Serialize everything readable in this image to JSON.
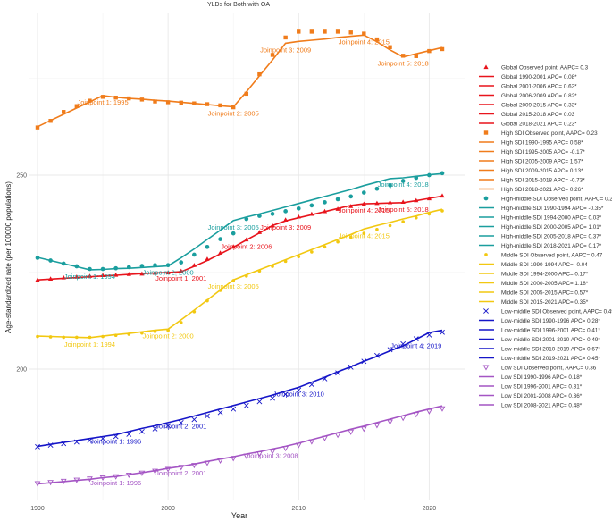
{
  "chart_data": {
    "type": "line",
    "title": "YLDs for Both with OA",
    "xlabel": "Year",
    "ylabel": "Age-standardized rate (per 100000 populations)",
    "xlim": [
      1990,
      2021.5
    ],
    "ylim": [
      170,
      287
    ],
    "x_ticks": [
      1990,
      2000,
      2010,
      2020
    ],
    "y_ticks": [
      200,
      250
    ],
    "grid": true,
    "legend_position": "right",
    "x": [
      1990,
      1991,
      1992,
      1993,
      1994,
      1995,
      1996,
      1997,
      1998,
      1999,
      2000,
      2001,
      2002,
      2003,
      2004,
      2005,
      2006,
      2007,
      2008,
      2009,
      2010,
      2011,
      2012,
      2013,
      2014,
      2015,
      2016,
      2017,
      2018,
      2019,
      2020,
      2021
    ],
    "series": [
      {
        "name": "Global",
        "color": "#e8141c",
        "marker": "triangle",
        "values": [
          223.0,
          223.3,
          223.6,
          223.8,
          224.0,
          224.2,
          224.3,
          224.5,
          224.6,
          224.8,
          224.9,
          225.3,
          226.8,
          228.4,
          230.0,
          231.6,
          233.4,
          235.3,
          237.0,
          238.5,
          239.3,
          240.0,
          240.7,
          241.3,
          242.0,
          242.6,
          242.8,
          243.0,
          243.1,
          243.5,
          244.0,
          244.7
        ],
        "fit": [
          223.0,
          223.2,
          223.4,
          223.6,
          223.8,
          224.0,
          224.2,
          224.4,
          224.6,
          224.8,
          224.9,
          225.1,
          226.5,
          228.0,
          229.7,
          231.4,
          233.3,
          235.1,
          237.0,
          238.2,
          239.0,
          239.8,
          240.6,
          241.4,
          242.2,
          242.6,
          242.7,
          242.8,
          242.9,
          243.4,
          244.0,
          244.6
        ],
        "joinpoints": [
          {
            "label": "Joinpoint 1: 2001",
            "year": 2001
          },
          {
            "label": "Joinpoint 2: 2006",
            "year": 2006
          },
          {
            "label": "Joinpoint 3: 2009",
            "year": 2009
          },
          {
            "label": "Joinpoint 4: 2015",
            "year": 2015
          },
          {
            "label": "Joinpoint 5: 2018",
            "year": 2018
          }
        ],
        "legend": [
          "Global Observed point, AAPC= 0.3",
          "Global 1990-2001 APC= 0.08*",
          "Global 2001-2006 APC= 0.62*",
          "Global 2006-2009 APC= 0.82*",
          "Global 2009-2015 APC= 0.33*",
          "Global 2015-2018 APC= 0.03",
          "Global 2018-2021 APC= 0.23*"
        ]
      },
      {
        "name": "High SDI",
        "color": "#f07c1b",
        "marker": "square",
        "values": [
          262.3,
          264.0,
          266.3,
          267.8,
          269.2,
          270.2,
          270.0,
          269.8,
          269.5,
          269.0,
          268.8,
          268.7,
          268.5,
          268.3,
          268.0,
          267.5,
          271.0,
          276.0,
          281.0,
          285.5,
          287.0,
          287.0,
          287.0,
          287.0,
          286.8,
          286.5,
          285.0,
          283.0,
          280.8,
          280.7,
          282.0,
          282.5
        ],
        "fit": [
          262.5,
          264.1,
          265.7,
          267.3,
          268.9,
          270.5,
          270.1,
          269.8,
          269.6,
          269.3,
          269.1,
          268.8,
          268.5,
          268.2,
          267.9,
          267.6,
          271.5,
          275.6,
          279.7,
          284.0,
          284.5,
          284.8,
          285.1,
          285.5,
          285.8,
          286.1,
          284.4,
          282.3,
          280.5,
          281.3,
          282.1,
          282.9
        ],
        "joinpoints": [
          {
            "label": "Joinpoint 1: 1995",
            "year": 1995
          },
          {
            "label": "Joinpoint 2: 2005",
            "year": 2005
          },
          {
            "label": "Joinpoint 3: 2009",
            "year": 2009
          },
          {
            "label": "Joinpoint 4: 2015",
            "year": 2015
          },
          {
            "label": "Joinpoint 5: 2018",
            "year": 2018
          }
        ],
        "legend": [
          "High SDI Observed point, AAPC= 0.23",
          "High SDI 1990-1995 APC= 0.58*",
          "High SDI 1995-2005 APC= -0.17*",
          "High SDI 2005-2009 APC= 1.57*",
          "High SDI 2009-2015 APC= 0.13*",
          "High SDI 2015-2018 APC= -0.73*",
          "High SDI 2018-2021 APC= 0.26*"
        ]
      },
      {
        "name": "High-middle SDI",
        "color": "#1a9e9e",
        "marker": "circle",
        "values": [
          228.7,
          228.0,
          227.2,
          226.5,
          225.8,
          225.8,
          226.0,
          226.3,
          226.6,
          226.8,
          226.8,
          227.5,
          229.5,
          231.5,
          233.5,
          235.0,
          238.7,
          239.5,
          240.0,
          240.7,
          241.4,
          242.2,
          243.0,
          243.8,
          244.5,
          245.5,
          246.5,
          247.4,
          248.5,
          249.3,
          250.0,
          250.5
        ],
        "fit": [
          228.8,
          228.0,
          227.2,
          226.4,
          225.6,
          225.7,
          225.9,
          226.0,
          226.2,
          226.4,
          226.6,
          228.7,
          231.0,
          233.4,
          235.8,
          238.3,
          239.2,
          240.0,
          240.9,
          241.8,
          242.7,
          243.6,
          244.5,
          245.4,
          246.3,
          247.3,
          248.2,
          249.1,
          249.3,
          249.7,
          250.1,
          250.4
        ],
        "joinpoints": [
          {
            "label": "Joinpoint 1: 1994",
            "year": 1994
          },
          {
            "label": "Joinpoint 2: 2000",
            "year": 2000
          },
          {
            "label": "Joinpoint 3: 2005",
            "year": 2005
          },
          {
            "label": "Joinpoint 4: 2018",
            "year": 2018
          }
        ],
        "legend": [
          "High-middle SDI Observed point, AAPC= 0.29",
          "High-middle SDI 1990-1994 APC= -0.35*",
          "High-middle SDI 1994-2000 APC= 0.03*",
          "High-middle SDI 2000-2005 APC= 1.01*",
          "High-middle SDI 2005-2018 APC= 0.37*",
          "High-middle SDI 2018-2021 APC= 0.17*"
        ]
      },
      {
        "name": "Middle SDI",
        "color": "#f2c811",
        "marker": "dot",
        "values": [
          208.4,
          208.3,
          208.2,
          208.2,
          208.2,
          208.4,
          208.7,
          209.0,
          209.3,
          209.7,
          210.0,
          212.0,
          214.8,
          217.6,
          220.3,
          222.8,
          224.0,
          225.3,
          226.5,
          227.8,
          229.0,
          230.2,
          231.5,
          232.8,
          234.0,
          235.0,
          236.0,
          237.0,
          238.0,
          239.0,
          240.0,
          240.8
        ],
        "fit": [
          208.5,
          208.4,
          208.3,
          208.2,
          208.1,
          208.5,
          208.9,
          209.2,
          209.6,
          210.0,
          210.3,
          212.7,
          215.2,
          217.8,
          220.4,
          223.0,
          224.3,
          225.6,
          226.9,
          228.2,
          229.5,
          230.8,
          232.1,
          233.4,
          234.7,
          236.1,
          237.0,
          237.8,
          238.7,
          239.5,
          240.4,
          241.2
        ],
        "joinpoints": [
          {
            "label": "Joinpoint 1: 1994",
            "year": 1994
          },
          {
            "label": "Joinpoint 2: 2000",
            "year": 2000
          },
          {
            "label": "Joinpoint 3: 2005",
            "year": 2005
          },
          {
            "label": "Joinpoint 4: 2015",
            "year": 2015
          }
        ],
        "legend": [
          "Middle SDI Observed point, AAPC= 0.47",
          "Middle SDI 1990-1994 APC= -0.04",
          "Middle SDI 1994-2000 APC= 0.17*",
          "Middle SDI 2000-2005 APC= 1.18*",
          "Middle SDI 2005-2015 APC= 0.57*",
          "Middle SDI 2015-2021 APC= 0.35*"
        ]
      },
      {
        "name": "Low-middle SDI",
        "color": "#1515c8",
        "marker": "x",
        "values": [
          180.0,
          180.4,
          180.8,
          181.2,
          181.6,
          182.1,
          182.6,
          183.2,
          183.9,
          184.6,
          185.4,
          186.2,
          187.0,
          187.9,
          188.8,
          189.7,
          190.6,
          191.6,
          192.5,
          193.5,
          194.6,
          196.0,
          197.5,
          199.0,
          200.5,
          202.0,
          203.5,
          205.0,
          206.5,
          207.8,
          208.8,
          209.5
        ],
        "fit": [
          180.1,
          180.6,
          181.1,
          181.6,
          182.1,
          182.6,
          183.1,
          183.9,
          184.7,
          185.4,
          186.2,
          187.0,
          187.9,
          188.8,
          189.7,
          190.6,
          191.5,
          192.4,
          193.3,
          194.3,
          195.3,
          196.6,
          197.9,
          199.3,
          200.6,
          202.0,
          203.3,
          204.7,
          206.0,
          207.7,
          209.4,
          210.0
        ],
        "joinpoints": [
          {
            "label": "Joinpoint 1: 1996",
            "year": 1996
          },
          {
            "label": "Joinpoint 2: 2001",
            "year": 2001
          },
          {
            "label": "Joinpoint 3: 2010",
            "year": 2010
          },
          {
            "label": "Joinpoint 4: 2019",
            "year": 2019
          }
        ],
        "legend": [
          "Low-middle SDI Observed point, AAPC= 0.49",
          "Low-middle SDI 1990-1996 APC= 0.28*",
          "Low-middle SDI 1996-2001 APC= 0.41*",
          "Low-middle SDI 2001-2010 APC= 0.49*",
          "Low-middle SDI 2010-2019 APC= 0.67*",
          "Low-middle SDI 2019-2021 APC= 0.45*"
        ]
      },
      {
        "name": "Low SDI",
        "color": "#a455c4",
        "marker": "triangle-down",
        "values": [
          170.5,
          170.8,
          171.1,
          171.4,
          171.7,
          172.0,
          172.3,
          172.7,
          173.2,
          173.7,
          174.2,
          174.7,
          175.2,
          175.8,
          176.4,
          177.0,
          177.6,
          178.2,
          178.8,
          179.6,
          180.4,
          181.3,
          182.2,
          183.0,
          183.8,
          184.6,
          185.5,
          186.4,
          187.4,
          188.3,
          189.1,
          189.8
        ],
        "fit": [
          170.4,
          170.7,
          171.0,
          171.3,
          171.6,
          172.0,
          172.3,
          172.8,
          173.3,
          173.8,
          174.4,
          174.9,
          175.5,
          176.2,
          176.8,
          177.4,
          178.1,
          178.7,
          179.4,
          180.1,
          180.9,
          181.8,
          182.7,
          183.6,
          184.5,
          185.3,
          186.2,
          187.1,
          188.0,
          188.9,
          189.7,
          190.5
        ],
        "joinpoints": [
          {
            "label": "Joinpoint 1: 1996",
            "year": 1996
          },
          {
            "label": "Joinpoint 2: 2001",
            "year": 2001
          },
          {
            "label": "Joinpoint 3: 2008",
            "year": 2008
          }
        ],
        "legend": [
          "Low SDI Observed point, AAPC= 0.36",
          "Low SDI 1990-1996 APC= 0.18*",
          "Low SDI 1996-2001 APC= 0.31*",
          "Low SDI 2001-2008 APC= 0.36*",
          "Low SDI 2008-2021 APC= 0.48*"
        ]
      }
    ]
  }
}
